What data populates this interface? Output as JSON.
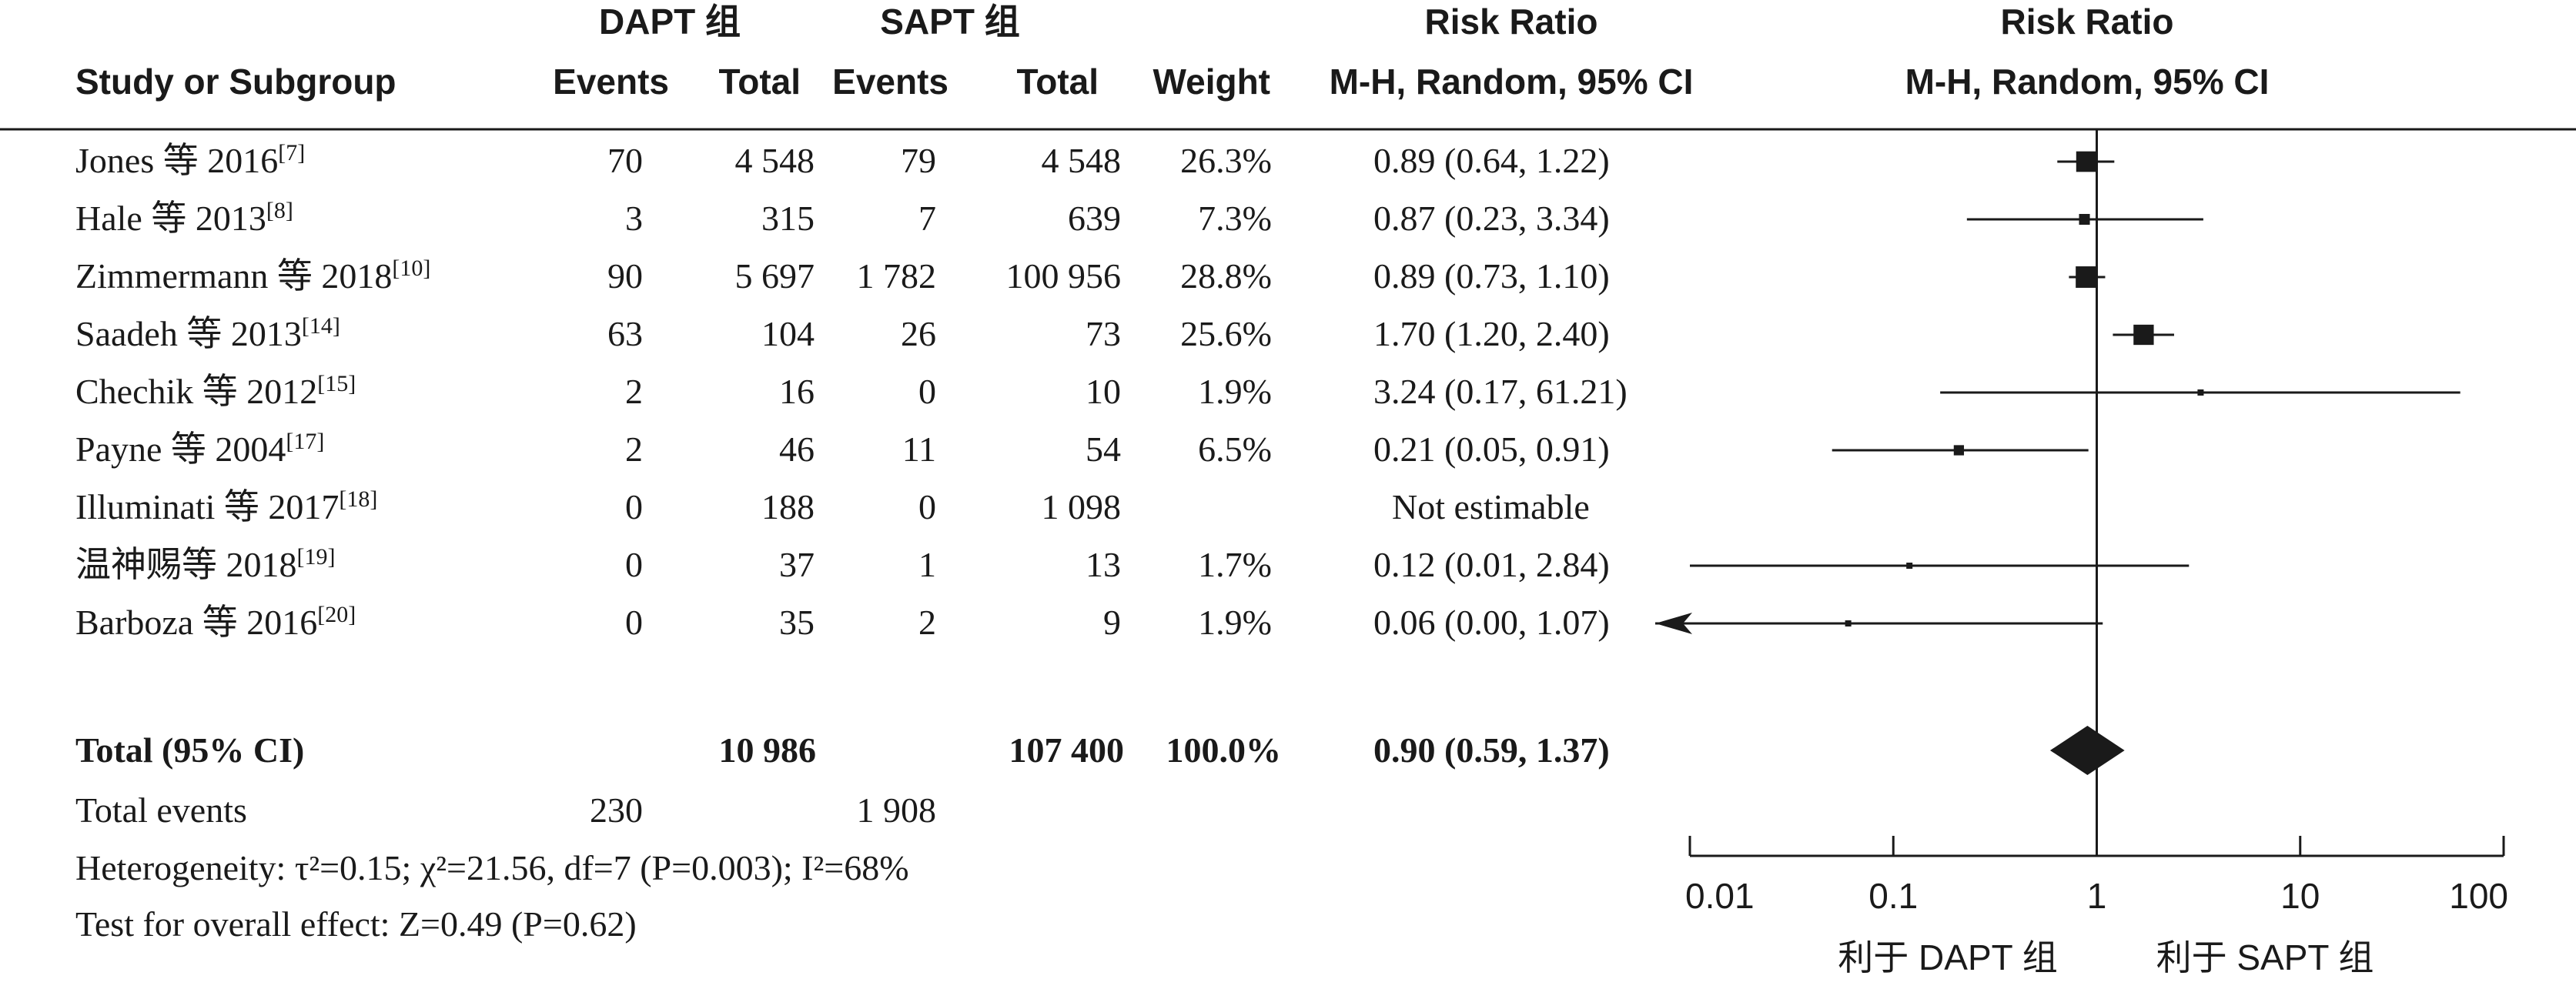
{
  "header": {
    "group_dapt": "DAPT 组",
    "group_sapt": "SAPT 组",
    "study_col": "Study or Subgroup",
    "events_label": "Events",
    "total_label": "Total",
    "weight_label": "Weight",
    "rr_title": "Risk Ratio",
    "rr_method": "M-H, Random, 95% CI"
  },
  "rows": [
    {
      "study": "Jones 等 2016",
      "ref": "[7]",
      "dapt_events": "70",
      "dapt_total": "4 548",
      "sapt_events": "79",
      "sapt_total": "4 548",
      "weight": "26.3%",
      "ci_text": "0.89 (0.64, 1.22)"
    },
    {
      "study": "Hale 等 2013",
      "ref": "[8]",
      "dapt_events": "3",
      "dapt_total": "315",
      "sapt_events": "7",
      "sapt_total": "639",
      "weight": "7.3%",
      "ci_text": "0.87 (0.23, 3.34)"
    },
    {
      "study": "Zimmermann 等 2018",
      "ref": "[10]",
      "dapt_events": "90",
      "dapt_total": "5 697",
      "sapt_events": "1 782",
      "sapt_total": "100 956",
      "weight": "28.8%",
      "ci_text": "0.89 (0.73, 1.10)"
    },
    {
      "study": "Saadeh 等 2013",
      "ref": "[14]",
      "dapt_events": "63",
      "dapt_total": "104",
      "sapt_events": "26",
      "sapt_total": "73",
      "weight": "25.6%",
      "ci_text": "1.70 (1.20, 2.40)"
    },
    {
      "study": "Chechik 等 2012",
      "ref": "[15]",
      "dapt_events": "2",
      "dapt_total": "16",
      "sapt_events": "0",
      "sapt_total": "10",
      "weight": "1.9%",
      "ci_text": "3.24 (0.17, 61.21)"
    },
    {
      "study": "Payne 等 2004",
      "ref": "[17]",
      "dapt_events": "2",
      "dapt_total": "46",
      "sapt_events": "11",
      "sapt_total": "54",
      "weight": "6.5%",
      "ci_text": "0.21 (0.05, 0.91)"
    },
    {
      "study": "Illuminati 等 2017",
      "ref": "[18]",
      "dapt_events": "0",
      "dapt_total": "188",
      "sapt_events": "0",
      "sapt_total": "1 098",
      "weight": "",
      "ci_text": "Not estimable"
    },
    {
      "study": "温神赐等 2018",
      "ref": "[19]",
      "dapt_events": "0",
      "dapt_total": "37",
      "sapt_events": "1",
      "sapt_total": "13",
      "weight": "1.7%",
      "ci_text": "0.12 (0.01, 2.84)"
    },
    {
      "study": "Barboza 等 2016",
      "ref": "[20]",
      "dapt_events": "0",
      "dapt_total": "35",
      "sapt_events": "2",
      "sapt_total": "9",
      "weight": "1.9%",
      "ci_text": "0.06 (0.00, 1.07)"
    }
  ],
  "total_row": {
    "label": "Total (95% CI)",
    "dapt_total": "10 986",
    "sapt_total": "107 400",
    "weight": "100.0%",
    "ci_text": "0.90 (0.59, 1.37)"
  },
  "events_row": {
    "label": "Total events",
    "dapt": "230",
    "sapt": "1 908"
  },
  "heterogeneity": "Heterogeneity: τ²=0.15; χ²=21.56, df=7 (P=0.003); I²=68%",
  "overall_effect": "Test for overall effect: Z=0.49 (P=0.62)",
  "axis": {
    "ticks": [
      "0.01",
      "0.1",
      "1",
      "10",
      "100"
    ],
    "favours_left": "利于 DAPT 组",
    "favours_right": "利于 SAPT 组"
  },
  "chart_data": {
    "type": "scatter",
    "subtype": "forest-plot",
    "x_scale": "log",
    "xlim": [
      0.01,
      100
    ],
    "reference_line": 1,
    "series": [
      {
        "study": "Jones 等 2016",
        "rr": 0.89,
        "lo": 0.64,
        "hi": 1.22,
        "weight": 26.3
      },
      {
        "study": "Hale 等 2013",
        "rr": 0.87,
        "lo": 0.23,
        "hi": 3.34,
        "weight": 7.3
      },
      {
        "study": "Zimmermann 等 2018",
        "rr": 0.89,
        "lo": 0.73,
        "hi": 1.1,
        "weight": 28.8
      },
      {
        "study": "Saadeh 等 2013",
        "rr": 1.7,
        "lo": 1.2,
        "hi": 2.4,
        "weight": 25.6
      },
      {
        "study": "Chechik 等 2012",
        "rr": 3.24,
        "lo": 0.17,
        "hi": 61.21,
        "weight": 1.9
      },
      {
        "study": "Payne 等 2004",
        "rr": 0.21,
        "lo": 0.05,
        "hi": 0.91,
        "weight": 6.5
      },
      {
        "study": "Illuminati 等 2017",
        "rr": null,
        "lo": null,
        "hi": null,
        "weight": null
      },
      {
        "study": "温神赐等 2018",
        "rr": 0.12,
        "lo": 0.01,
        "hi": 2.84,
        "weight": 1.7
      },
      {
        "study": "Barboza 等 2016",
        "rr": 0.06,
        "lo": 0.0,
        "hi": 1.07,
        "weight": 1.9
      }
    ],
    "pooled": {
      "rr": 0.9,
      "lo": 0.59,
      "hi": 1.37,
      "weight": 100.0
    }
  }
}
